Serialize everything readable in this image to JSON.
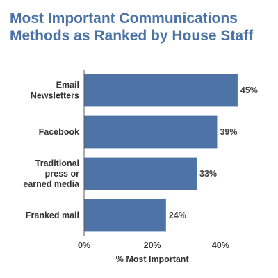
{
  "chart_data": {
    "type": "bar",
    "orientation": "horizontal",
    "title": "Most Important Communications Methods as Ranked by House Staff",
    "categories": [
      "Email Newsletters",
      "Facebook",
      "Traditional press or earned media",
      "Franked mail"
    ],
    "category_lines": [
      [
        "Email",
        "Newsletters"
      ],
      [
        "Facebook"
      ],
      [
        "Traditional",
        "press or",
        "earned media"
      ],
      [
        "Franked mail"
      ]
    ],
    "values": [
      45,
      39,
      33,
      24
    ],
    "value_labels": [
      "45%",
      "39%",
      "33%",
      "24%"
    ],
    "xlabel": "% Most Important",
    "ylabel": "",
    "xlim": [
      0,
      55
    ],
    "x_ticks": [
      0,
      20,
      40
    ],
    "x_tick_labels": [
      "0%",
      "20%",
      "40%"
    ],
    "grid": false,
    "legend": "none",
    "bar_color": "#4e73a6",
    "title_color": "#4a72a4"
  }
}
